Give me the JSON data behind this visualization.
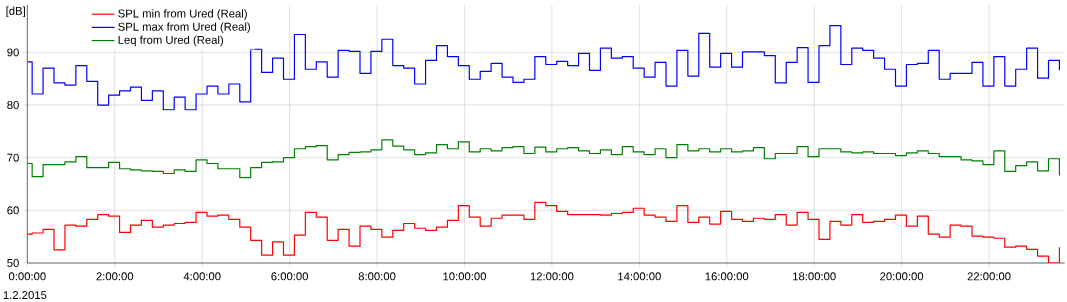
{
  "chart_data": {
    "type": "step",
    "ylabel": "[dB]",
    "annotations": [
      "1.2.2015"
    ],
    "x": [
      0,
      0.11,
      0.36,
      0.61,
      0.86,
      1.11,
      1.36,
      1.61,
      1.86,
      2.11,
      2.36,
      2.61,
      2.86,
      3.11,
      3.36,
      3.61,
      3.86,
      4.11,
      4.36,
      4.61,
      4.86,
      5.11,
      5.36,
      5.61,
      5.86,
      6.11,
      6.36,
      6.61,
      6.86,
      7.11,
      7.36,
      7.61,
      7.86,
      8.11,
      8.36,
      8.61,
      8.86,
      9.11,
      9.36,
      9.61,
      9.86,
      10.11,
      10.36,
      10.61,
      10.86,
      11.11,
      11.36,
      11.61,
      11.86,
      12.11,
      12.36,
      12.61,
      12.86,
      13.11,
      13.36,
      13.61,
      13.86,
      14.11,
      14.36,
      14.61,
      14.86,
      15.11,
      15.36,
      15.61,
      15.86,
      16.11,
      16.36,
      16.61,
      16.86,
      17.11,
      17.36,
      17.61,
      17.86,
      18.11,
      18.36,
      18.61,
      18.86,
      19.11,
      19.36,
      19.61,
      19.86,
      20.11,
      20.36,
      20.61,
      20.86,
      21.11,
      21.36,
      21.61,
      21.86,
      22.11,
      22.36,
      22.61,
      22.86,
      23.11,
      23.36,
      23.61
    ],
    "series": [
      {
        "name": "SPL min from Ured (Real)",
        "color": "#ff0000",
        "values": [
          55.5,
          55.7,
          56.4,
          52.5,
          57.2,
          57.0,
          58.3,
          59.2,
          58.9,
          55.8,
          57.2,
          58.1,
          56.8,
          57.2,
          57.5,
          57.7,
          59.6,
          58.9,
          59.1,
          58.3,
          56.8,
          54.3,
          51.5,
          54.0,
          51.5,
          55.3,
          59.6,
          58.7,
          54.3,
          56.4,
          53.2,
          57.0,
          56.4,
          54.9,
          56.2,
          57.5,
          56.6,
          56.2,
          56.8,
          58.1,
          60.9,
          58.7,
          57.0,
          58.5,
          59.1,
          59.1,
          58.3,
          61.5,
          60.9,
          59.8,
          59.2,
          59.2,
          59.2,
          59.1,
          59.4,
          59.6,
          60.4,
          59.1,
          58.7,
          57.9,
          60.9,
          57.7,
          58.7,
          57.4,
          59.8,
          58.3,
          57.9,
          58.5,
          58.3,
          59.2,
          57.2,
          59.6,
          58.3,
          54.5,
          57.9,
          57.2,
          59.2,
          57.7,
          57.9,
          58.3,
          59.1,
          57.0,
          58.9,
          55.5,
          54.9,
          57.2,
          57.0,
          55.1,
          54.9,
          54.7,
          53.0,
          53.2,
          52.6,
          51.3,
          50.0,
          53.0
        ]
      },
      {
        "name": "SPL max from Ured (Real)",
        "color": "#0000ff",
        "values": [
          88.2,
          82.1,
          87.0,
          84.2,
          83.8,
          87.5,
          84.5,
          80.0,
          81.9,
          82.7,
          83.4,
          80.9,
          82.7,
          79.1,
          81.5,
          79.1,
          82.1,
          83.6,
          82.1,
          84.0,
          80.6,
          90.6,
          86.2,
          88.9,
          84.9,
          93.4,
          86.8,
          88.2,
          85.3,
          90.4,
          90.2,
          86.0,
          90.2,
          92.5,
          87.5,
          87.0,
          84.0,
          88.5,
          91.3,
          89.2,
          87.5,
          84.9,
          86.4,
          87.9,
          85.3,
          84.3,
          84.9,
          89.2,
          87.7,
          88.3,
          87.5,
          89.8,
          86.6,
          90.8,
          88.9,
          89.2,
          87.0,
          85.3,
          88.1,
          83.6,
          90.4,
          85.5,
          93.6,
          87.2,
          89.8,
          87.2,
          90.1,
          90.1,
          89.4,
          84.2,
          88.1,
          90.9,
          84.3,
          91.3,
          95.1,
          87.7,
          90.8,
          90.4,
          88.9,
          86.8,
          83.6,
          87.7,
          87.9,
          90.4,
          84.9,
          86.0,
          86.0,
          88.1,
          83.6,
          89.2,
          83.6,
          86.8,
          90.8,
          85.1,
          88.5,
          86.6
        ]
      },
      {
        "name": "Leq from Ured (Real)",
        "color": "#008000",
        "values": [
          68.9,
          66.4,
          68.7,
          68.7,
          69.2,
          70.2,
          68.1,
          68.1,
          69.1,
          67.9,
          67.7,
          67.5,
          67.4,
          67.0,
          67.7,
          67.4,
          69.6,
          68.9,
          67.9,
          67.9,
          66.2,
          68.1,
          69.1,
          69.2,
          70.0,
          71.7,
          72.1,
          72.3,
          69.6,
          70.6,
          71.0,
          71.1,
          71.5,
          73.4,
          72.2,
          71.5,
          70.6,
          70.9,
          72.5,
          71.7,
          73.0,
          71.1,
          71.7,
          71.3,
          71.9,
          72.1,
          70.8,
          72.0,
          71.1,
          71.7,
          71.9,
          71.3,
          70.8,
          71.5,
          70.6,
          72.1,
          71.1,
          70.6,
          71.7,
          70.0,
          72.5,
          71.3,
          71.7,
          71.1,
          71.7,
          71.1,
          71.3,
          71.9,
          69.8,
          70.8,
          70.8,
          72.1,
          70.2,
          71.7,
          71.7,
          71.1,
          70.9,
          71.1,
          70.8,
          70.8,
          70.4,
          70.9,
          71.3,
          70.8,
          70.2,
          70.2,
          69.6,
          69.4,
          68.7,
          71.3,
          67.4,
          68.5,
          69.2,
          67.5,
          69.8,
          66.6
        ]
      }
    ],
    "xlim": [
      0,
      23.73
    ],
    "ylim": [
      50,
      99
    ],
    "xticks": [
      {
        "value": 0,
        "label": "0:00:00"
      },
      {
        "value": 2,
        "label": "2:00:00"
      },
      {
        "value": 4,
        "label": "4:00:00"
      },
      {
        "value": 6,
        "label": "6:00:00"
      },
      {
        "value": 8,
        "label": "8:00:00"
      },
      {
        "value": 10,
        "label": "10:00:00"
      },
      {
        "value": 12,
        "label": "12:00:00"
      },
      {
        "value": 14,
        "label": "14:00:00"
      },
      {
        "value": 16,
        "label": "16:00:00"
      },
      {
        "value": 18,
        "label": "18:00:00"
      },
      {
        "value": 20,
        "label": "20:00:00"
      },
      {
        "value": 22,
        "label": "22:00:00"
      }
    ],
    "yticks": [
      50,
      60,
      70,
      80,
      90
    ],
    "grid": true,
    "legend": "top left"
  }
}
